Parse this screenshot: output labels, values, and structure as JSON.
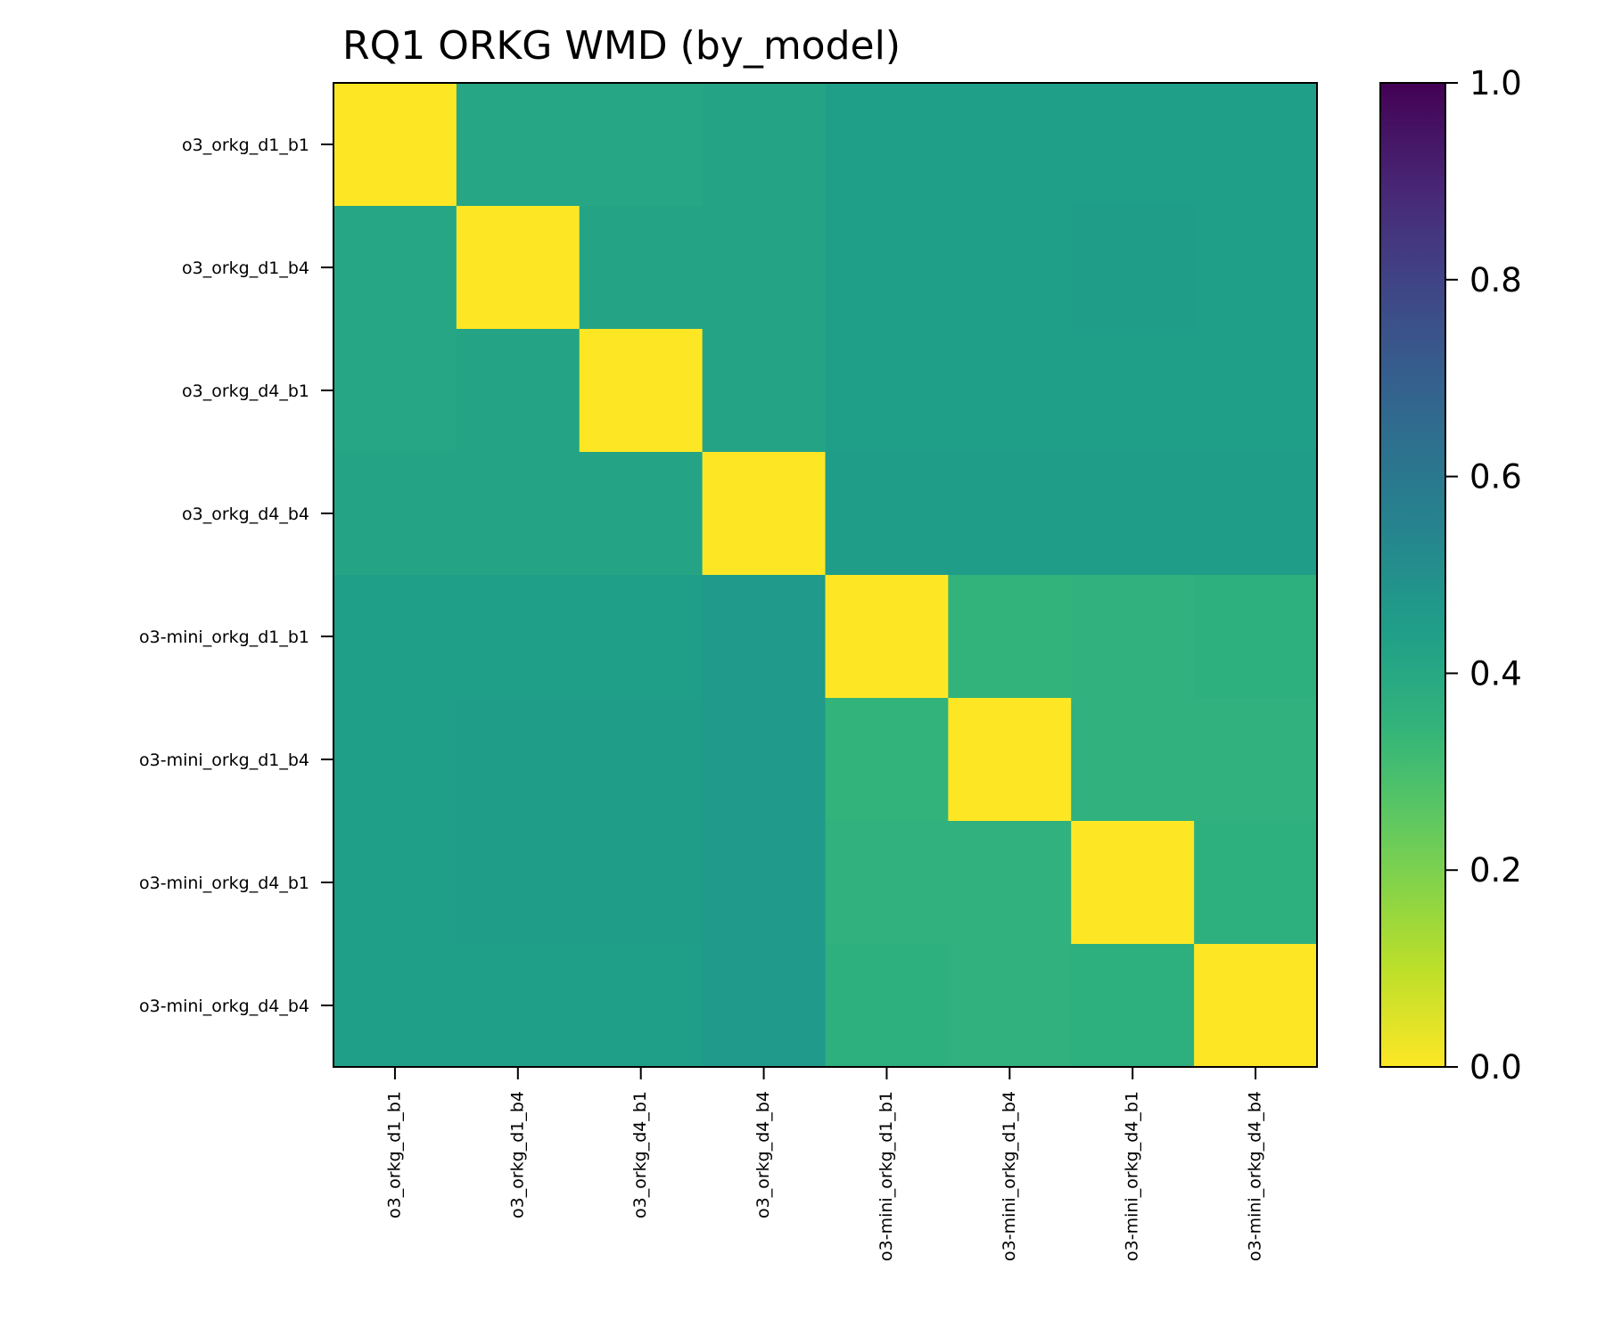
{
  "chart_data": {
    "type": "heatmap",
    "title": "RQ1 ORKG WMD (by_model)",
    "xlabel": "",
    "ylabel": "",
    "labels": [
      "o3_orkg_d1_b1",
      "o3_orkg_d1_b4",
      "o3_orkg_d4_b1",
      "o3_orkg_d4_b4",
      "o3-mini_orkg_d1_b1",
      "o3-mini_orkg_d1_b4",
      "o3-mini_orkg_d4_b1",
      "o3-mini_orkg_d4_b4"
    ],
    "matrix": [
      [
        0.0,
        0.41,
        0.41,
        0.42,
        0.44,
        0.44,
        0.44,
        0.44
      ],
      [
        0.41,
        0.0,
        0.42,
        0.42,
        0.44,
        0.44,
        0.45,
        0.44
      ],
      [
        0.41,
        0.42,
        0.0,
        0.42,
        0.44,
        0.44,
        0.44,
        0.44
      ],
      [
        0.42,
        0.42,
        0.42,
        0.0,
        0.45,
        0.45,
        0.45,
        0.45
      ],
      [
        0.44,
        0.44,
        0.44,
        0.46,
        0.0,
        0.35,
        0.36,
        0.37
      ],
      [
        0.44,
        0.45,
        0.45,
        0.46,
        0.35,
        0.0,
        0.36,
        0.36
      ],
      [
        0.44,
        0.45,
        0.45,
        0.46,
        0.36,
        0.36,
        0.0,
        0.37
      ],
      [
        0.44,
        0.44,
        0.44,
        0.46,
        0.37,
        0.36,
        0.37,
        0.0
      ]
    ],
    "colorbar": {
      "range": [
        0.0,
        1.0
      ],
      "colormap": "viridis_r",
      "ticks": [
        "0.0",
        "0.2",
        "0.4",
        "0.6",
        "0.8",
        "1.0"
      ]
    },
    "colors": {
      "viridis_stops": [
        "#440154",
        "#482878",
        "#3e4a89",
        "#31688e",
        "#26828e",
        "#1f9e89",
        "#35b779",
        "#6ece58",
        "#b5de2b",
        "#fde725"
      ]
    }
  }
}
